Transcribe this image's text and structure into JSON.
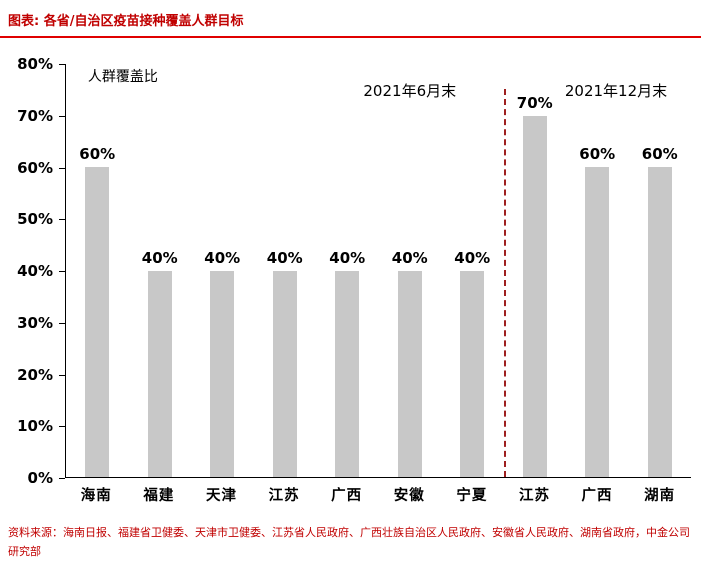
{
  "header": {
    "title": "图表: 各省/自治区疫苗接种覆盖人群目标"
  },
  "chart_data": {
    "type": "bar",
    "title": "各省/自治区疫苗接种覆盖人群目标",
    "ylabel_inside": "人群覆盖比",
    "categories": [
      "海南",
      "福建",
      "天津",
      "江苏",
      "广西",
      "安徽",
      "宁夏",
      "江苏",
      "广西",
      "湖南"
    ],
    "values": [
      60,
      40,
      40,
      40,
      40,
      40,
      40,
      70,
      60,
      60
    ],
    "labels": [
      "60%",
      "40%",
      "40%",
      "40%",
      "40%",
      "40%",
      "40%",
      "70%",
      "60%",
      "60%"
    ],
    "group_annotations": [
      {
        "text": "2021年6月末",
        "applies_to": "bars 1-7"
      },
      {
        "text": "2021年12月末",
        "applies_to": "bars 8-10"
      }
    ],
    "divider_after_index": 6,
    "ylim": [
      0,
      80
    ],
    "yticks": [
      "80%",
      "70%",
      "60%",
      "50%",
      "40%",
      "30%",
      "20%",
      "10%",
      "0%"
    ],
    "grid": "off",
    "legend": "none",
    "bar_color": "#c8c8c8",
    "divider_color": "#9e1f1f",
    "accent_red": "#c00000"
  },
  "footer": {
    "source": "资料来源：海南日报、福建省卫健委、天津市卫健委、江苏省人民政府、广西壮族自治区人民政府、安徽省人民政府、湖南省政府，中金公司研究部"
  }
}
